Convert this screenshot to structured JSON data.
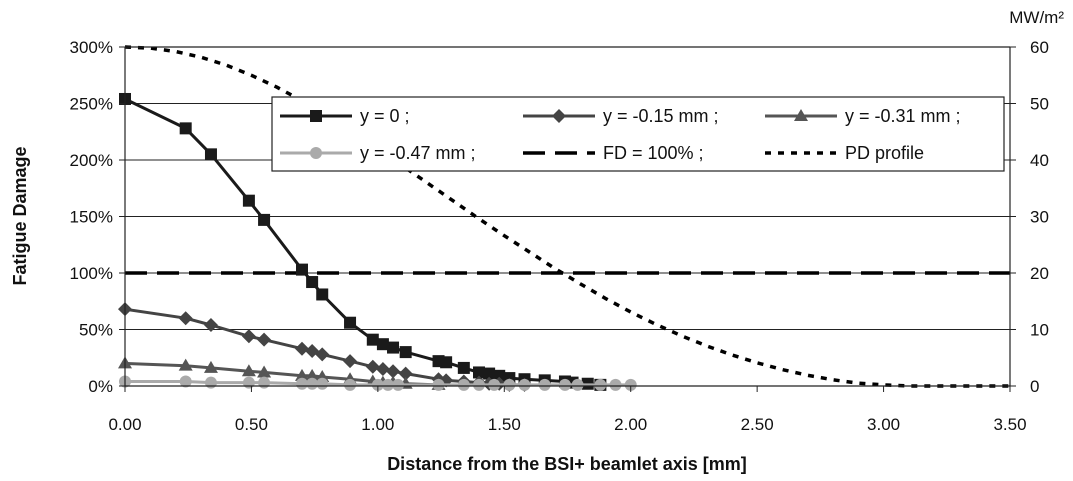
{
  "chart_data": {
    "type": "line",
    "xlabel": "Distance from the BSI+ beamlet axis [mm]",
    "ylabel": "Fatigue Damage",
    "y2label": "MW/m²",
    "xlim": [
      0,
      3.5
    ],
    "ylim": [
      0,
      300
    ],
    "y2lim": [
      0,
      60
    ],
    "grid": "horizontal",
    "legend_position": "top-right",
    "x_ticks": [
      "0.00",
      "0.50",
      "1.00",
      "1.50",
      "2.00",
      "2.50",
      "3.00",
      "3.50"
    ],
    "y_ticks": [
      "0%",
      "50%",
      "100%",
      "150%",
      "200%",
      "250%",
      "300%"
    ],
    "y2_ticks": [
      "0",
      "10",
      "20",
      "30",
      "40",
      "50",
      "60"
    ],
    "series": [
      {
        "name": "y = 0 ;",
        "color": "#1a1a1a",
        "marker": "square",
        "axis": "left",
        "x": [
          0,
          0.24,
          0.34,
          0.49,
          0.55,
          0.7,
          0.74,
          0.78,
          0.89,
          0.98,
          1.02,
          1.06,
          1.11,
          1.24,
          1.27,
          1.34,
          1.4,
          1.44,
          1.48,
          1.52,
          1.58,
          1.66,
          1.74,
          1.77,
          1.83,
          1.88
        ],
        "y": [
          254,
          228,
          205,
          164,
          147,
          103,
          92,
          81,
          56,
          41,
          37,
          34,
          30,
          22,
          21,
          16,
          12,
          11,
          9,
          7,
          6,
          5,
          4,
          3,
          2,
          1
        ]
      },
      {
        "name": "y = -0.15 mm ;",
        "color": "#444444",
        "marker": "diamond",
        "axis": "left",
        "x": [
          0,
          0.24,
          0.34,
          0.49,
          0.55,
          0.7,
          0.74,
          0.78,
          0.89,
          0.98,
          1.02,
          1.06,
          1.11,
          1.24,
          1.27,
          1.34,
          1.4,
          1.44,
          1.48,
          1.52,
          1.58
        ],
        "y": [
          68,
          60,
          54,
          44,
          41,
          33,
          31,
          28,
          22,
          17,
          15,
          13,
          11,
          6,
          5,
          4,
          3,
          2,
          2,
          1,
          1
        ]
      },
      {
        "name": "y = -0.31 mm ;",
        "color": "#555555",
        "marker": "triangle",
        "axis": "left",
        "x": [
          0,
          0.24,
          0.34,
          0.49,
          0.55,
          0.7,
          0.74,
          0.78,
          0.89,
          0.98,
          1.02,
          1.06,
          1.11,
          1.24
        ],
        "y": [
          20,
          18,
          16,
          13,
          12,
          9,
          9,
          8,
          6,
          4,
          3,
          3,
          2,
          1
        ]
      },
      {
        "name": "y = -0.47 mm ;",
        "color": "#aaaaaa",
        "marker": "circle",
        "axis": "left",
        "x": [
          0,
          0.24,
          0.34,
          0.49,
          0.55,
          0.7,
          0.74,
          0.78,
          0.89,
          1.0,
          1.04,
          1.08,
          1.24,
          1.34,
          1.4,
          1.46,
          1.52,
          1.58,
          1.66,
          1.74,
          1.79,
          1.88,
          1.94,
          2.0
        ],
        "y": [
          4,
          4,
          3,
          3,
          3,
          2,
          2,
          2,
          1,
          1,
          1,
          1,
          1,
          1,
          1,
          1,
          1,
          1,
          1,
          1,
          1,
          1,
          1,
          1
        ]
      },
      {
        "name": "FD = 100% ;",
        "color": "#000000",
        "marker": "none",
        "line": "dashed",
        "axis": "left",
        "x": [
          0,
          3.5
        ],
        "y": [
          100,
          100
        ]
      },
      {
        "name": "PD profile",
        "color": "#000000",
        "marker": "none",
        "line": "dotted",
        "axis": "right",
        "x": [
          0,
          0.1,
          0.2,
          0.3,
          0.4,
          0.5,
          0.6,
          0.7,
          0.8,
          0.9,
          1.0,
          1.1,
          1.2,
          1.3,
          1.4,
          1.5,
          1.6,
          1.7,
          1.8,
          1.9,
          2.0,
          2.1,
          2.2,
          2.3,
          2.4,
          2.5,
          2.6,
          2.7,
          2.8,
          2.9,
          3.0,
          3.1,
          3.2,
          3.3,
          3.4,
          3.5
        ],
        "y": [
          60,
          59.8,
          59.2,
          58.2,
          56.8,
          55.0,
          52.9,
          50.5,
          47.9,
          45.0,
          42.0,
          38.9,
          35.8,
          32.7,
          29.6,
          26.6,
          23.7,
          20.8,
          18.1,
          15.5,
          13.1,
          10.9,
          8.9,
          7.1,
          5.5,
          4.1,
          2.9,
          1.9,
          1.1,
          0.5,
          0.2,
          0,
          0,
          0,
          0,
          0
        ]
      }
    ]
  }
}
